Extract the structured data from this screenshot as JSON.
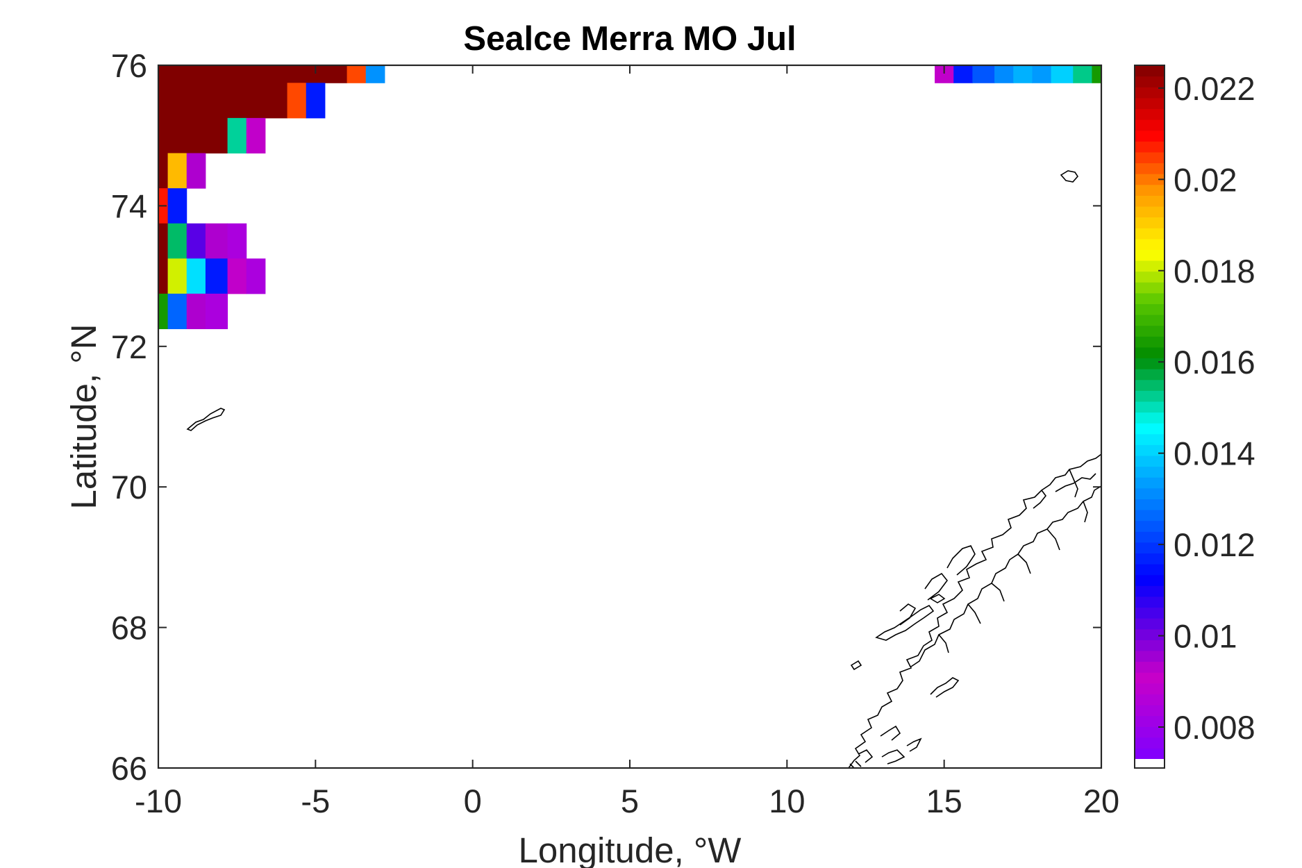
{
  "chart_data": {
    "type": "heatmap",
    "title": "Sealce Merra MO Jul",
    "xlabel": "Longitude, °W",
    "ylabel": "Latitude, °N",
    "xlim": [
      -10,
      20
    ],
    "ylim": [
      66,
      76
    ],
    "xticks": [
      -10,
      -5,
      0,
      5,
      10,
      15,
      20
    ],
    "xtick_labels": [
      "-10",
      "-5",
      "0",
      "5",
      "10",
      "15",
      "20"
    ],
    "yticks": [
      66,
      68,
      70,
      72,
      74,
      76
    ],
    "ytick_labels": [
      "66",
      "68",
      "70",
      "72",
      "74",
      "76"
    ],
    "grid": false,
    "colorbar": {
      "position": "right",
      "range": [
        0.0073,
        0.0225
      ],
      "ticks": [
        0.008,
        0.01,
        0.012,
        0.014,
        0.016,
        0.018,
        0.02,
        0.022
      ],
      "tick_labels": [
        "0.008",
        "0.01",
        "0.012",
        "0.014",
        "0.016",
        "0.018",
        "0.02",
        "0.022"
      ]
    },
    "cells": [
      {
        "lon0": -10,
        "lon1": -4.0,
        "lat0": 75.75,
        "lat1": 76,
        "value": 0.0225
      },
      {
        "lon0": -4.0,
        "lon1": -3.4,
        "lat0": 75.75,
        "lat1": 76,
        "value": 0.0204
      },
      {
        "lon0": -3.4,
        "lon1": -2.8,
        "lat0": 75.75,
        "lat1": 76,
        "value": 0.0132
      },
      {
        "lon0": -10,
        "lon1": -5.9,
        "lat0": 75.25,
        "lat1": 75.75,
        "value": 0.0225
      },
      {
        "lon0": -5.9,
        "lon1": -5.3,
        "lat0": 75.25,
        "lat1": 75.75,
        "value": 0.0204
      },
      {
        "lon0": -5.3,
        "lon1": -4.7,
        "lat0": 75.25,
        "lat1": 75.75,
        "value": 0.0116
      },
      {
        "lon0": -10,
        "lon1": -7.8,
        "lat0": 74.75,
        "lat1": 75.25,
        "value": 0.0225
      },
      {
        "lon0": -7.8,
        "lon1": -7.2,
        "lat0": 74.75,
        "lat1": 75.25,
        "value": 0.0152
      },
      {
        "lon0": -7.2,
        "lon1": -6.6,
        "lat0": 74.75,
        "lat1": 75.25,
        "value": 0.0092
      },
      {
        "lon0": -10,
        "lon1": -9.7,
        "lat0": 74.25,
        "lat1": 74.75,
        "value": 0.0225
      },
      {
        "lon0": -9.7,
        "lon1": -9.1,
        "lat0": 74.25,
        "lat1": 74.75,
        "value": 0.0193
      },
      {
        "lon0": -9.1,
        "lon1": -8.5,
        "lat0": 74.25,
        "lat1": 74.75,
        "value": 0.0094
      },
      {
        "lon0": -10,
        "lon1": -9.7,
        "lat0": 73.75,
        "lat1": 74.25,
        "value": 0.0208
      },
      {
        "lon0": -9.7,
        "lon1": -9.1,
        "lat0": 73.75,
        "lat1": 74.25,
        "value": 0.0116
      },
      {
        "lon0": -10,
        "lon1": -9.7,
        "lat0": 73.25,
        "lat1": 73.75,
        "value": 0.0225
      },
      {
        "lon0": -9.7,
        "lon1": -9.1,
        "lat0": 73.25,
        "lat1": 73.75,
        "value": 0.0155
      },
      {
        "lon0": -9.1,
        "lon1": -8.5,
        "lat0": 73.25,
        "lat1": 73.75,
        "value": 0.0103
      },
      {
        "lon0": -8.5,
        "lon1": -7.8,
        "lat0": 73.25,
        "lat1": 73.75,
        "value": 0.0094
      },
      {
        "lon0": -7.8,
        "lon1": -7.2,
        "lat0": 73.25,
        "lat1": 73.75,
        "value": 0.0084
      },
      {
        "lon0": -10,
        "lon1": -9.7,
        "lat0": 72.75,
        "lat1": 73.25,
        "value": 0.0225
      },
      {
        "lon0": -9.7,
        "lon1": -9.1,
        "lat0": 72.75,
        "lat1": 73.25,
        "value": 0.0181
      },
      {
        "lon0": -9.1,
        "lon1": -8.5,
        "lat0": 72.75,
        "lat1": 73.25,
        "value": 0.0142
      },
      {
        "lon0": -8.5,
        "lon1": -7.8,
        "lat0": 72.75,
        "lat1": 73.25,
        "value": 0.0116
      },
      {
        "lon0": -7.8,
        "lon1": -7.2,
        "lat0": 72.75,
        "lat1": 73.25,
        "value": 0.0092
      },
      {
        "lon0": -7.2,
        "lon1": -6.6,
        "lat0": 72.75,
        "lat1": 73.25,
        "value": 0.0084
      },
      {
        "lon0": -10,
        "lon1": -9.7,
        "lat0": 72.25,
        "lat1": 72.75,
        "value": 0.0164
      },
      {
        "lon0": -9.7,
        "lon1": -9.1,
        "lat0": 72.25,
        "lat1": 72.75,
        "value": 0.0126
      },
      {
        "lon0": -9.1,
        "lon1": -8.5,
        "lat0": 72.25,
        "lat1": 72.75,
        "value": 0.0094
      },
      {
        "lon0": -8.5,
        "lon1": -7.8,
        "lat0": 72.25,
        "lat1": 72.75,
        "value": 0.0084
      },
      {
        "lon0": 14.7,
        "lon1": 15.3,
        "lat0": 75.75,
        "lat1": 76,
        "value": 0.0092
      },
      {
        "lon0": 15.3,
        "lon1": 15.9,
        "lat0": 75.75,
        "lat1": 76,
        "value": 0.0116
      },
      {
        "lon0": 15.9,
        "lon1": 16.6,
        "lat0": 75.75,
        "lat1": 76,
        "value": 0.0124
      },
      {
        "lon0": 16.6,
        "lon1": 17.2,
        "lat0": 75.75,
        "lat1": 76,
        "value": 0.0131
      },
      {
        "lon0": 17.2,
        "lon1": 17.8,
        "lat0": 75.75,
        "lat1": 76,
        "value": 0.0136
      },
      {
        "lon0": 17.8,
        "lon1": 18.4,
        "lat0": 75.75,
        "lat1": 76,
        "value": 0.0133
      },
      {
        "lon0": 18.4,
        "lon1": 19.1,
        "lat0": 75.75,
        "lat1": 76,
        "value": 0.014
      },
      {
        "lon0": 19.1,
        "lon1": 19.7,
        "lat0": 75.75,
        "lat1": 76,
        "value": 0.0153
      },
      {
        "lon0": 19.7,
        "lon1": 20,
        "lat0": 75.75,
        "lat1": 76,
        "value": 0.0164
      }
    ]
  }
}
